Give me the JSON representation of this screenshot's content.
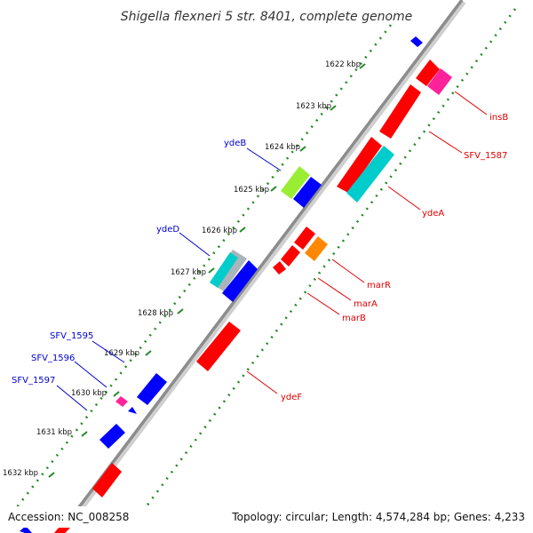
{
  "title": "Shigella flexneri 5 str. 8401, complete genome",
  "accession": "Accession: NC_008258",
  "summary": "Topology: circular; Length: 4,574,284 bp; Genes: 4,233",
  "colors": {
    "backbone": "#8c8c8c",
    "forward_label": "#0000cc",
    "reverse_label": "#dd0000",
    "tick_dots": "#228b22",
    "gene_red": "#ff0000",
    "gene_blue": "#0000ff",
    "gene_cyan": "#00cccc",
    "gene_green": "#99ee33",
    "gene_pink": "#ff2299",
    "gene_orange": "#ff8800"
  },
  "ticks": [
    "1622 kbp",
    "1623 kbp",
    "1624 kbp",
    "1625 kbp",
    "1626 kbp",
    "1627 kbp",
    "1628 kbp",
    "1629 kbp",
    "1630 kbp",
    "1631 kbp",
    "1632 kbp"
  ],
  "gene_labels_forward": [
    "ydeB",
    "ydeD",
    "SFV_1595",
    "SFV_1596",
    "SFV_1597"
  ],
  "gene_labels_reverse": [
    "insB",
    "SFV_1587",
    "ydeA",
    "marR",
    "marA",
    "marB",
    "ydeF"
  ]
}
